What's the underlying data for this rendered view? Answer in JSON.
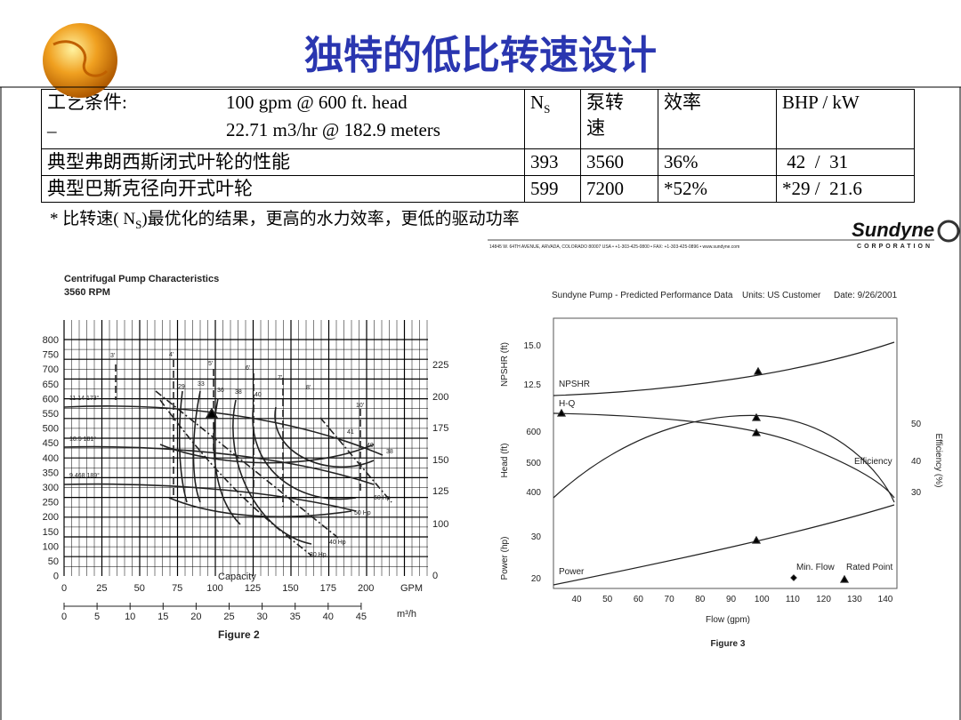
{
  "header": {
    "title": "独特的低比转速设计"
  },
  "table": {
    "conditions_label": "工艺条件:",
    "conditions": [
      "100 gpm @ 600 ft. head",
      "22.71 m3/hr @ 182.9 meters"
    ],
    "conditions_mark": "_",
    "headers": [
      {
        "main": "N",
        "sub": "S"
      },
      "泵转\n速",
      "效率",
      "BHP /  kW"
    ],
    "rows": [
      [
        "典型弗朗西斯闭式叶轮的性能",
        "393",
        "3560",
        "36%",
        " 42  /  31"
      ],
      [
        "典型巴斯克径向开式叶轮",
        "599",
        "7200",
        "*52%",
        "*29 /  21.6"
      ]
    ]
  },
  "footnote": {
    "before": "* 比转速( N",
    "sub": "S",
    "after": ")最优化的结果，更高的水力效率，更低的驱动功率"
  },
  "logo": {
    "name": "Sundyne",
    "corp": "CORPORATION",
    "address": "14845 W. 64TH AVENUE, ARVADA, COLORADO 80007 USA • +1-303-425-0800 • FAX: +1-303-425-0896 • www.sundyne.com"
  },
  "figure2": {
    "title": "Centrifugal Pump Characteristics",
    "subtitle": "3560 RPM",
    "caption": "Figure 2",
    "xlabel": "Capacity",
    "gpm_unit": "GPM",
    "m3h_unit": "m³/h",
    "left_ticks": [
      "800",
      "750",
      "700",
      "650",
      "600",
      "550",
      "500",
      "450",
      "400",
      "350",
      "300",
      "250",
      "200",
      "150",
      "100",
      "50",
      "0"
    ],
    "right_ticks": [
      "225",
      "200",
      "175",
      "150",
      "125",
      "100",
      "0"
    ],
    "gpm_ticks": [
      "0",
      "25",
      "50",
      "75",
      "100",
      "125",
      "150",
      "175",
      "200"
    ],
    "m3h_ticks": [
      "0",
      "5",
      "10",
      "15",
      "20",
      "25",
      "30",
      "35",
      "40",
      "45"
    ],
    "impeller_labels": [
      "11.14 173°",
      "10.5 181°",
      "9.468 189°"
    ],
    "npsh_labels": [
      "3'",
      "4'",
      "5'",
      "6'",
      "7'",
      "8'",
      "10'"
    ],
    "efficiency_labels": [
      "29",
      "33",
      "36",
      "38",
      "40",
      "41",
      "40",
      "38"
    ],
    "power_labels": [
      "60 Hp",
      "50 Hp",
      "40 Hp",
      "30 Hp"
    ]
  },
  "figure3": {
    "title": "Sundyne Pump - Predicted Performance Data",
    "units": "Units: US Customer",
    "date": "Date: 9/26/2001",
    "caption": "Figure 3",
    "xlabel": "Flow (gpm)",
    "npshr_axis": "NPSHR (ft)",
    "head_axis": "Head (ft)",
    "power_axis": "Power (hp)",
    "eff_axis": "Efficiency (%)",
    "npshr_ticks": [
      "15.0",
      "12.5"
    ],
    "head_ticks": [
      "600",
      "500",
      "400"
    ],
    "power_ticks": [
      "30",
      "20"
    ],
    "eff_ticks": [
      "50",
      "40",
      "30"
    ],
    "x_ticks": [
      "40",
      "50",
      "60",
      "70",
      "80",
      "90",
      "100",
      "110",
      "120",
      "130",
      "140"
    ],
    "curve_labels": [
      "NPSHR",
      "H-Q",
      "Efficiency",
      "Power"
    ],
    "legend": [
      "Min. Flow",
      "Rated Point"
    ]
  }
}
